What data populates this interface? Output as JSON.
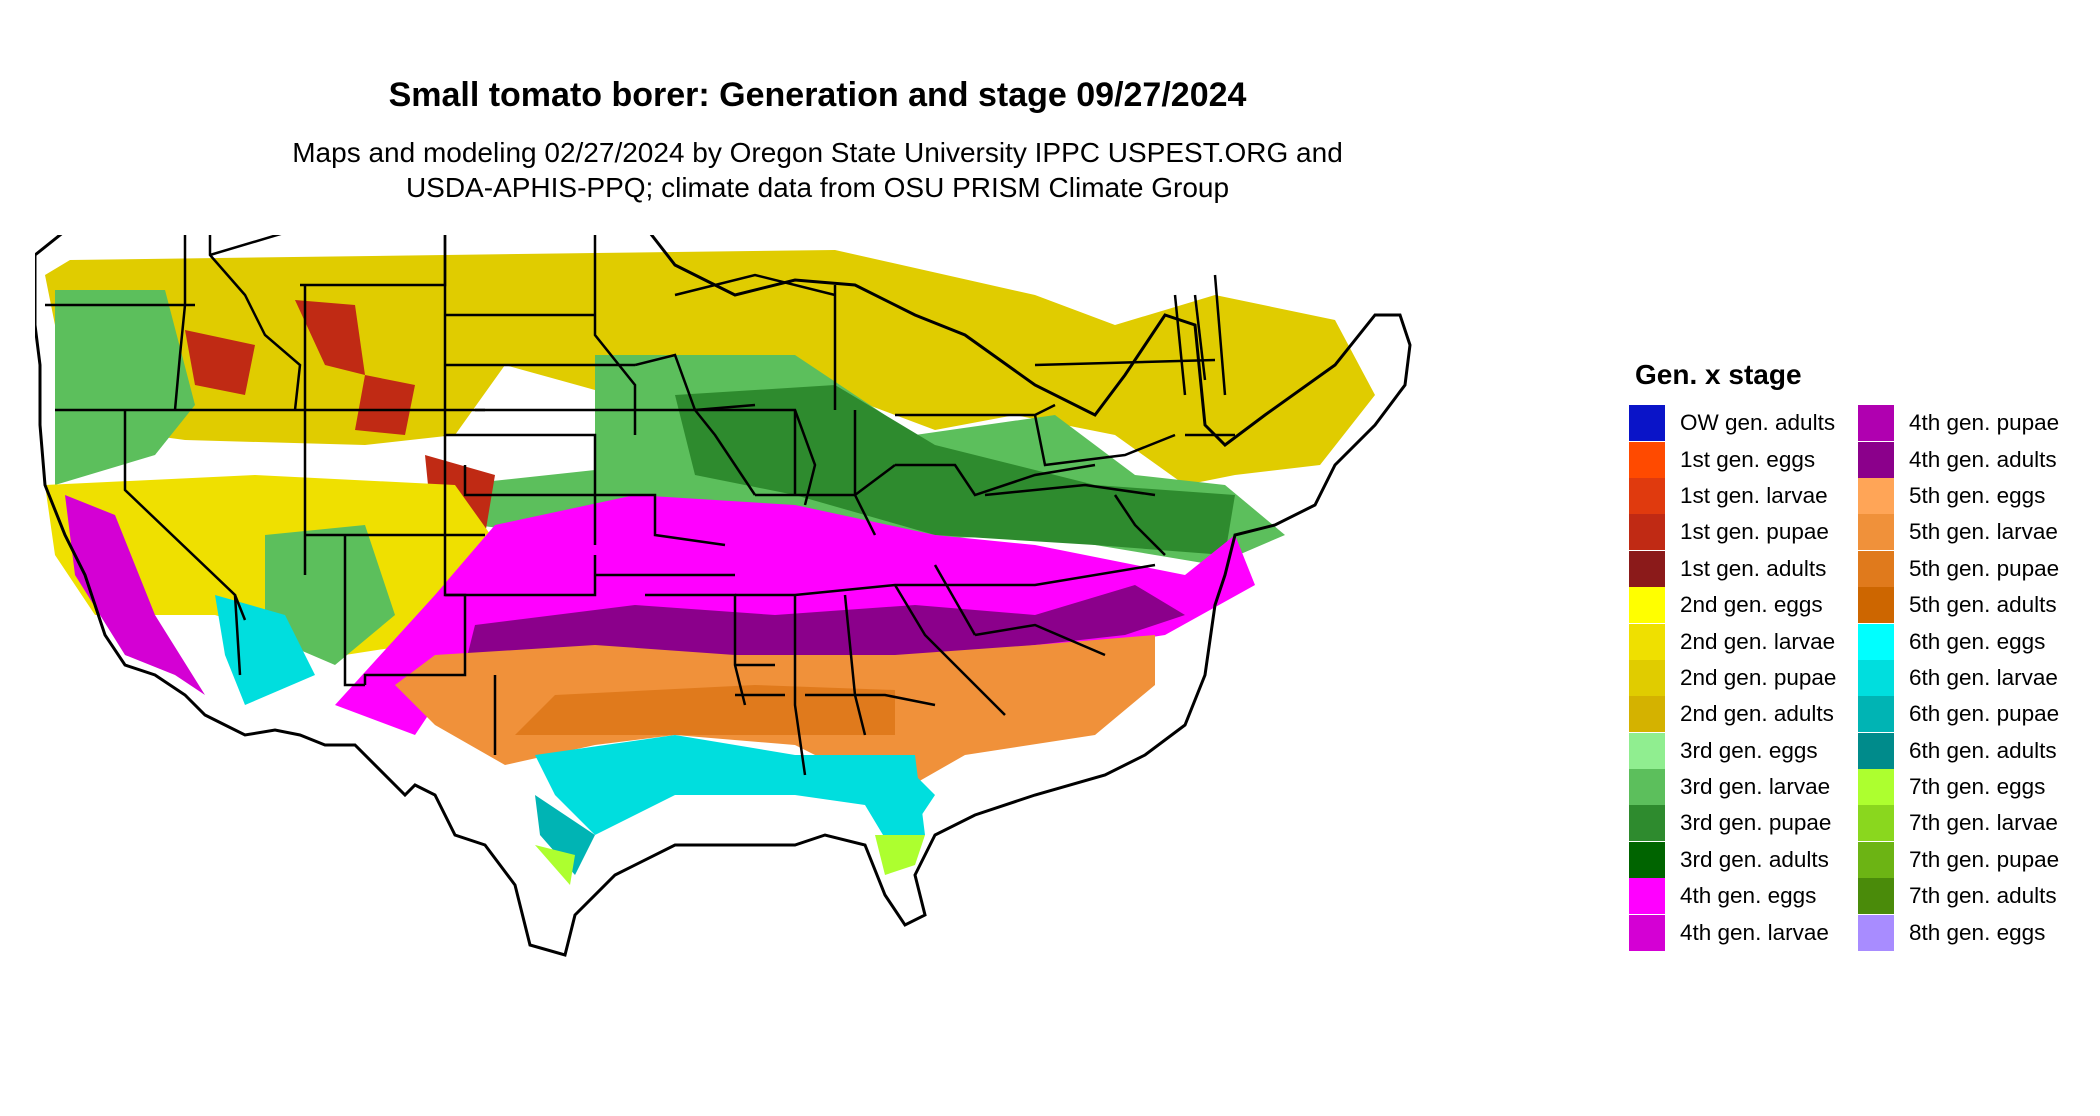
{
  "title": "Small tomato borer: Generation and stage 09/27/2024",
  "subtitle": {
    "line1": "Maps and modeling 02/27/2024 by Oregon State University IPPC USPEST.ORG and",
    "line2": "USDA-APHIS-PPQ; climate data from OSU PRISM Climate Group"
  },
  "legend": {
    "title": "Gen. x stage",
    "columns": [
      [
        {
          "label": "OW gen. adults",
          "color": "#0a14c8"
        },
        {
          "label": "1st gen. eggs",
          "color": "#ff4a00"
        },
        {
          "label": "1st gen. larvae",
          "color": "#e03a0e"
        },
        {
          "label": "1st gen. pupae",
          "color": "#c02a14"
        },
        {
          "label": "1st gen. adults",
          "color": "#8b1a1a"
        },
        {
          "label": "2nd gen. eggs",
          "color": "#ffff00"
        },
        {
          "label": "2nd gen. larvae",
          "color": "#efe000"
        },
        {
          "label": "2nd gen. pupae",
          "color": "#e0cc00"
        },
        {
          "label": "2nd gen. adults",
          "color": "#d4b200"
        },
        {
          "label": "3rd gen. eggs",
          "color": "#90ee90"
        },
        {
          "label": "3rd gen. larvae",
          "color": "#5cbf5c"
        },
        {
          "label": "3rd gen. pupae",
          "color": "#2e8b2e"
        },
        {
          "label": "3rd gen. adults",
          "color": "#006400"
        },
        {
          "label": "4th gen. eggs",
          "color": "#ff00ff"
        },
        {
          "label": "4th gen. larvae",
          "color": "#d400d4"
        }
      ],
      [
        {
          "label": "4th gen. pupae",
          "color": "#b000b0"
        },
        {
          "label": "4th gen. adults",
          "color": "#8b008b"
        },
        {
          "label": "5th gen. eggs",
          "color": "#ffa557"
        },
        {
          "label": "5th gen. larvae",
          "color": "#f0913a"
        },
        {
          "label": "5th gen. pupae",
          "color": "#e07a1c"
        },
        {
          "label": "5th gen. adults",
          "color": "#cd6600"
        },
        {
          "label": "6th gen. eggs",
          "color": "#00ffff"
        },
        {
          "label": "6th gen. larvae",
          "color": "#00dede"
        },
        {
          "label": "6th gen. pupae",
          "color": "#00b4b4"
        },
        {
          "label": "6th gen. adults",
          "color": "#008b8b"
        },
        {
          "label": "7th gen. eggs",
          "color": "#adff2f"
        },
        {
          "label": "7th gen. larvae",
          "color": "#8ad71e"
        },
        {
          "label": "7th gen. pupae",
          "color": "#6cb414"
        },
        {
          "label": "7th gen. adults",
          "color": "#4a8b0a"
        },
        {
          "label": "8th gen. eggs",
          "color": "#a88cff"
        }
      ]
    ]
  }
}
